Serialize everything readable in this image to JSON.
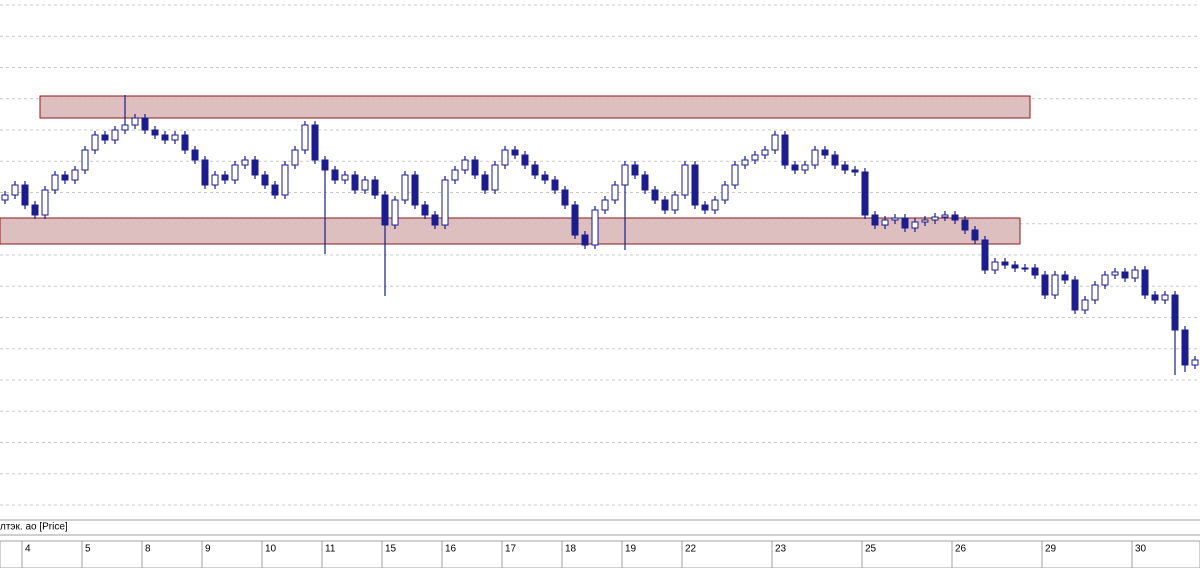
{
  "chart_data": {
    "type": "candlestick",
    "panel_label": "лтэк. ао [Price]",
    "categories": [
      null,
      null,
      "4",
      null,
      null,
      null,
      null,
      null,
      "5",
      null,
      null,
      null,
      null,
      null,
      "8",
      null,
      null,
      null,
      null,
      null,
      "9",
      null,
      null,
      null,
      null,
      null,
      "10",
      null,
      null,
      null,
      null,
      null,
      "11",
      null,
      null,
      null,
      null,
      null,
      "15",
      null,
      null,
      null,
      null,
      null,
      "16",
      null,
      null,
      null,
      null,
      null,
      "17",
      null,
      null,
      null,
      null,
      null,
      "18",
      null,
      null,
      null,
      null,
      null,
      "19",
      null,
      null,
      null,
      null,
      null,
      "22",
      null,
      null,
      null,
      null,
      null,
      null,
      null,
      null,
      "23",
      null,
      null,
      null,
      null,
      null,
      null,
      null,
      null,
      "25",
      null,
      null,
      null,
      null,
      null,
      null,
      null,
      null,
      "26",
      null,
      null,
      null,
      null,
      null,
      null,
      null,
      null,
      "29",
      null,
      null,
      null,
      null,
      null,
      null,
      null,
      null,
      "30",
      null,
      null,
      null,
      null,
      null,
      null
    ],
    "open": [
      320,
      325,
      335,
      315,
      305,
      330,
      345,
      340,
      350,
      370,
      385,
      380,
      390,
      395,
      402,
      390,
      385,
      380,
      385,
      370,
      360,
      335,
      345,
      340,
      355,
      360,
      345,
      335,
      325,
      355,
      370,
      395,
      360,
      350,
      340,
      345,
      330,
      340,
      325,
      295,
      320,
      345,
      315,
      305,
      295,
      340,
      350,
      360,
      345,
      330,
      355,
      370,
      365,
      355,
      345,
      340,
      330,
      315,
      285,
      275,
      310,
      320,
      335,
      355,
      345,
      330,
      320,
      310,
      325,
      355,
      315,
      310,
      320,
      335,
      355,
      360,
      365,
      370,
      385,
      355,
      350,
      355,
      370,
      365,
      355,
      350,
      348,
      305,
      295,
      300,
      302,
      292,
      298,
      300,
      303,
      305,
      300,
      290,
      280,
      250,
      258,
      255,
      252,
      252,
      245,
      225,
      245,
      240,
      210,
      220,
      235,
      245,
      248,
      242,
      250,
      225,
      220,
      225,
      190,
      155
    ],
    "high": [
      329,
      339,
      339,
      319,
      334,
      349,
      349,
      354,
      374,
      389,
      389,
      394,
      425,
      406,
      406,
      394,
      389,
      389,
      389,
      374,
      364,
      349,
      349,
      359,
      364,
      364,
      349,
      339,
      359,
      374,
      399,
      399,
      364,
      354,
      349,
      349,
      344,
      344,
      329,
      324,
      349,
      349,
      319,
      309,
      344,
      354,
      364,
      364,
      349,
      359,
      374,
      374,
      369,
      359,
      349,
      344,
      334,
      319,
      289,
      314,
      324,
      339,
      359,
      359,
      349,
      334,
      324,
      329,
      359,
      359,
      319,
      324,
      339,
      359,
      364,
      369,
      374,
      389,
      389,
      359,
      359,
      374,
      374,
      369,
      359,
      354,
      352,
      309,
      304,
      306,
      306,
      302,
      304,
      307,
      309,
      309,
      304,
      294,
      284,
      262,
      262,
      259,
      256,
      256,
      249,
      249,
      249,
      244,
      224,
      239,
      249,
      252,
      252,
      254,
      254,
      229,
      229,
      229,
      194,
      164
    ],
    "low": [
      316,
      321,
      311,
      301,
      301,
      326,
      336,
      336,
      346,
      366,
      376,
      376,
      386,
      391,
      386,
      381,
      376,
      376,
      366,
      356,
      331,
      331,
      336,
      336,
      351,
      341,
      331,
      321,
      321,
      351,
      366,
      356,
      266,
      336,
      336,
      326,
      326,
      321,
      224,
      291,
      316,
      311,
      301,
      291,
      291,
      336,
      346,
      341,
      326,
      326,
      351,
      361,
      351,
      341,
      336,
      326,
      311,
      281,
      271,
      271,
      306,
      316,
      270,
      341,
      326,
      316,
      306,
      306,
      321,
      311,
      306,
      306,
      316,
      331,
      351,
      356,
      361,
      366,
      351,
      346,
      346,
      351,
      361,
      351,
      346,
      344,
      301,
      291,
      291,
      296,
      288,
      288,
      294,
      296,
      299,
      296,
      286,
      276,
      246,
      246,
      251,
      248,
      248,
      241,
      221,
      221,
      236,
      206,
      206,
      216,
      231,
      241,
      238,
      238,
      221,
      216,
      216,
      145,
      148,
      151
    ],
    "close": [
      325,
      335,
      315,
      305,
      330,
      345,
      340,
      350,
      370,
      385,
      380,
      390,
      395,
      402,
      390,
      385,
      380,
      385,
      370,
      360,
      335,
      345,
      340,
      355,
      360,
      345,
      335,
      325,
      355,
      370,
      395,
      360,
      350,
      340,
      345,
      330,
      340,
      325,
      295,
      320,
      345,
      315,
      305,
      295,
      340,
      350,
      360,
      345,
      330,
      355,
      370,
      365,
      355,
      345,
      340,
      330,
      315,
      285,
      275,
      310,
      320,
      335,
      355,
      345,
      330,
      320,
      310,
      325,
      355,
      315,
      310,
      320,
      335,
      355,
      360,
      365,
      370,
      385,
      355,
      350,
      355,
      370,
      365,
      355,
      350,
      348,
      305,
      295,
      300,
      302,
      292,
      298,
      300,
      303,
      305,
      300,
      290,
      280,
      250,
      258,
      255,
      252,
      252,
      245,
      225,
      245,
      240,
      210,
      220,
      235,
      245,
      248,
      242,
      250,
      225,
      220,
      225,
      190,
      155,
      160
    ],
    "color": "#1c1c8e",
    "zones": [
      {
        "high": 424,
        "low": 402,
        "from": 4,
        "to": 102
      },
      {
        "high": 302,
        "low": 276,
        "from": 0,
        "to": 101
      }
    ],
    "zone_color": "#d8b4b4",
    "zone_border": "#8b1a1a",
    "ylim": [
      0,
      520
    ],
    "grid": true
  }
}
